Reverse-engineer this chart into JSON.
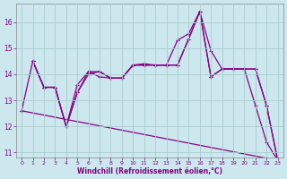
{
  "xlabel": "Windchill (Refroidissement éolien,°C)",
  "background_color": "#cce8ee",
  "line_color": "#880088",
  "grid_color": "#aacccc",
  "xlim": [
    -0.5,
    23.5
  ],
  "ylim": [
    10.8,
    16.7
  ],
  "yticks": [
    11,
    12,
    13,
    14,
    15,
    16
  ],
  "xticks": [
    0,
    1,
    2,
    3,
    4,
    5,
    6,
    7,
    8,
    9,
    10,
    11,
    12,
    13,
    14,
    15,
    16,
    17,
    18,
    19,
    20,
    21,
    22,
    23
  ],
  "series": {
    "s1": {
      "x": [
        0,
        1,
        2,
        3,
        4,
        5,
        6,
        7,
        8,
        9,
        10,
        11,
        12,
        13,
        14,
        15,
        16,
        17,
        18,
        19,
        20,
        21,
        22,
        23
      ],
      "y": [
        12.6,
        14.5,
        13.5,
        13.5,
        12.0,
        13.3,
        14.1,
        13.9,
        13.85,
        13.85,
        14.35,
        14.35,
        14.35,
        14.35,
        14.35,
        15.35,
        16.4,
        13.9,
        14.2,
        14.2,
        14.2,
        14.2,
        12.8,
        10.7
      ]
    },
    "s2": {
      "x": [
        1,
        2,
        3,
        4,
        5,
        6,
        7,
        8,
        9,
        10,
        11,
        12,
        13,
        14,
        15,
        16,
        17,
        18,
        19,
        20,
        21,
        22,
        23
      ],
      "y": [
        14.5,
        13.5,
        13.5,
        12.0,
        13.6,
        14.1,
        14.1,
        13.85,
        13.85,
        14.35,
        14.4,
        14.35,
        14.35,
        15.3,
        15.55,
        16.4,
        14.9,
        14.2,
        14.2,
        14.2,
        12.8,
        11.4,
        10.7
      ]
    },
    "s3": {
      "x": [
        1,
        2,
        3,
        4,
        5,
        6,
        7,
        8,
        9,
        10,
        11,
        12,
        13,
        14,
        15,
        16,
        17,
        18,
        19,
        20,
        21,
        22,
        23
      ],
      "y": [
        14.5,
        13.5,
        13.5,
        12.0,
        13.3,
        14.0,
        14.1,
        13.85,
        13.85,
        14.35,
        14.35,
        14.35,
        14.35,
        14.35,
        15.35,
        16.4,
        13.9,
        14.2,
        14.2,
        14.2,
        14.2,
        12.8,
        10.7
      ]
    },
    "s_diag": {
      "x": [
        0,
        23
      ],
      "y": [
        12.6,
        10.7
      ]
    }
  }
}
